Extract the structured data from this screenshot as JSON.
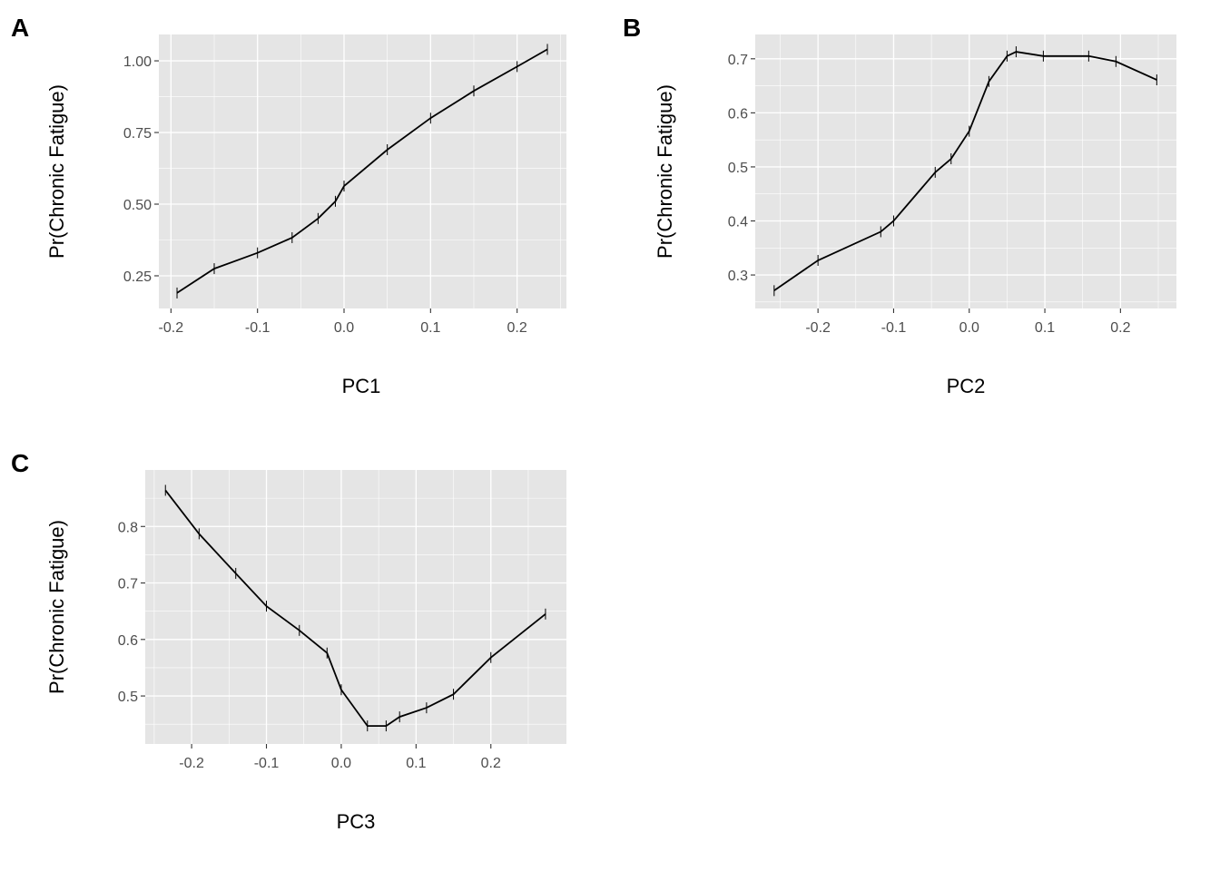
{
  "chart_data": [
    {
      "panel": "A",
      "type": "line",
      "xlabel": "PC1",
      "ylabel": "Pr(Chronic Fatigue)",
      "xlim": [
        -0.214,
        0.257
      ],
      "ylim": [
        0.136,
        1.092
      ],
      "xticks": [
        -0.2,
        -0.1,
        0.0,
        0.1,
        0.2
      ],
      "xtick_labels": [
        "-0.2",
        "-0.1",
        "0.0",
        "0.1",
        "0.2"
      ],
      "yticks": [
        0.25,
        0.5,
        0.75,
        1.0
      ],
      "ytick_labels": [
        "0.25",
        "0.50",
        "0.75",
        "1.00"
      ],
      "grid": true,
      "x": [
        -0.193,
        -0.15,
        -0.1,
        -0.06,
        -0.03,
        -0.01,
        0.0,
        0.05,
        0.1,
        0.15,
        0.2,
        0.235
      ],
      "y": [
        0.19,
        0.275,
        0.33,
        0.383,
        0.45,
        0.51,
        0.563,
        0.69,
        0.8,
        0.895,
        0.98,
        1.04
      ]
    },
    {
      "panel": "B",
      "type": "line",
      "xlabel": "PC2",
      "ylabel": "Pr(Chronic Fatigue)",
      "xlim": [
        -0.283,
        0.274
      ],
      "ylim": [
        0.238,
        0.745
      ],
      "xticks": [
        -0.2,
        -0.1,
        0.0,
        0.1,
        0.2
      ],
      "xtick_labels": [
        "-0.2",
        "-0.1",
        "0.0",
        "0.1",
        "0.2"
      ],
      "yticks": [
        0.3,
        0.4,
        0.5,
        0.6,
        0.7
      ],
      "ytick_labels": [
        "0.3",
        "0.4",
        "0.5",
        "0.6",
        "0.7"
      ],
      "grid": true,
      "x": [
        -0.258,
        -0.2,
        -0.117,
        -0.1,
        -0.045,
        -0.024,
        0.0,
        0.026,
        0.05,
        0.062,
        0.098,
        0.158,
        0.194,
        0.248
      ],
      "y": [
        0.271,
        0.327,
        0.38,
        0.4,
        0.49,
        0.515,
        0.566,
        0.658,
        0.705,
        0.713,
        0.705,
        0.705,
        0.695,
        0.661
      ]
    },
    {
      "panel": "C",
      "type": "line",
      "xlabel": "PC3",
      "ylabel": "Pr(Chronic Fatigue)",
      "xlim": [
        -0.262,
        0.301
      ],
      "ylim": [
        0.415,
        0.9
      ],
      "xticks": [
        -0.2,
        -0.1,
        0.0,
        0.1,
        0.2
      ],
      "xtick_labels": [
        "-0.2",
        "-0.1",
        "0.0",
        "0.1",
        "0.2"
      ],
      "yticks": [
        0.5,
        0.6,
        0.7,
        0.8
      ],
      "ytick_labels": [
        "0.5",
        "0.6",
        "0.7",
        "0.8"
      ],
      "grid": true,
      "x": [
        -0.235,
        -0.19,
        -0.141,
        -0.1,
        -0.056,
        -0.019,
        0.0,
        0.035,
        0.06,
        0.078,
        0.114,
        0.15,
        0.2,
        0.273
      ],
      "y": [
        0.864,
        0.787,
        0.717,
        0.659,
        0.616,
        0.576,
        0.511,
        0.447,
        0.447,
        0.463,
        0.479,
        0.503,
        0.568,
        0.645
      ]
    }
  ],
  "colors": {
    "panel_bg": "#e5e5e5",
    "grid": "#ffffff",
    "line": "#000000"
  }
}
